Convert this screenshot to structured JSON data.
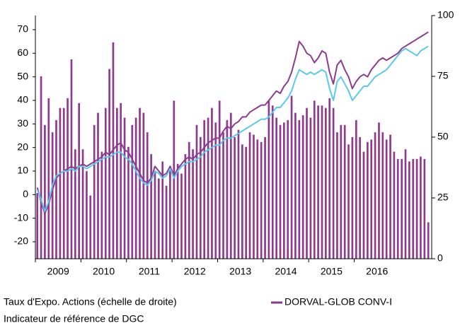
{
  "chart_data": {
    "type": "combo",
    "x": [
      2009.042,
      2009.125,
      2009.208,
      2009.292,
      2009.375,
      2009.458,
      2009.542,
      2009.625,
      2009.708,
      2009.792,
      2009.875,
      2009.958,
      2010.042,
      2010.125,
      2010.208,
      2010.292,
      2010.375,
      2010.458,
      2010.542,
      2010.625,
      2010.708,
      2010.792,
      2010.875,
      2010.958,
      2011.042,
      2011.125,
      2011.208,
      2011.292,
      2011.375,
      2011.458,
      2011.542,
      2011.625,
      2011.708,
      2011.792,
      2011.875,
      2011.958,
      2012.042,
      2012.125,
      2012.208,
      2012.292,
      2012.375,
      2012.458,
      2012.542,
      2012.625,
      2012.708,
      2012.792,
      2012.875,
      2012.958,
      2013.042,
      2013.125,
      2013.208,
      2013.292,
      2013.375,
      2013.458,
      2013.542,
      2013.625,
      2013.708,
      2013.792,
      2013.875,
      2013.958,
      2014.042,
      2014.125,
      2014.208,
      2014.292,
      2014.375,
      2014.458,
      2014.542,
      2014.625,
      2014.708,
      2014.792,
      2014.875,
      2014.958,
      2015.042,
      2015.125,
      2015.208,
      2015.292,
      2015.375,
      2015.458,
      2015.542,
      2015.625,
      2015.708,
      2015.792,
      2015.875,
      2015.958,
      2016.042,
      2016.125,
      2016.208,
      2016.292,
      2016.375,
      2016.458,
      2016.542,
      2016.625,
      2016.708,
      2016.792,
      2016.875,
      2016.958,
      2017.042,
      2017.125,
      2017.208,
      2017.292,
      2017.375,
      2017.458,
      2017.542,
      2017.625
    ],
    "series": [
      {
        "name": "Taux d'Expo. Actions (échelle de droite)",
        "type": "bar",
        "axis": "y2",
        "color": "#8e3a8e",
        "values": [
          27,
          75,
          55,
          66,
          52,
          57,
          62,
          62,
          66,
          82,
          45,
          64,
          45,
          36,
          26,
          55,
          60,
          44,
          62,
          78,
          89,
          62,
          64,
          58,
          46,
          55,
          58,
          62,
          60,
          52,
          43,
          36,
          33,
          40,
          30,
          38,
          65,
          39,
          35,
          43,
          48,
          45,
          55,
          50,
          57,
          58,
          62,
          56,
          65,
          52,
          57,
          60,
          50,
          53,
          47,
          46,
          52,
          51,
          49,
          48,
          50,
          65,
          63,
          58,
          55,
          56,
          57,
          67,
          60,
          57,
          59,
          62,
          58,
          65,
          63,
          63,
          62,
          66,
          62,
          52,
          55,
          55,
          47,
          50,
          57,
          50,
          44,
          48,
          49,
          52,
          56,
          52,
          49,
          51,
          44,
          41,
          41,
          45,
          40,
          41,
          41,
          42,
          41,
          15
        ]
      },
      {
        "name": "DORVAL-GLOB CONV-I",
        "type": "line",
        "color": "#8e3a8e",
        "values": [
          3,
          -3,
          -8,
          -4,
          2,
          7,
          9,
          10,
          11,
          12,
          11,
          12,
          13,
          12,
          13,
          14,
          15,
          16,
          18,
          17,
          19,
          21,
          22,
          19,
          18,
          15,
          12,
          9,
          6,
          5,
          7,
          12,
          10,
          8,
          9,
          12,
          8,
          11,
          13,
          15,
          16,
          15,
          17,
          18,
          20,
          22,
          23,
          24,
          24,
          27,
          29,
          28,
          30,
          31,
          33,
          33,
          35,
          36,
          37,
          38,
          38,
          40,
          42,
          44,
          43,
          46,
          48,
          52,
          58,
          65,
          63,
          60,
          59,
          56,
          58,
          61,
          60,
          52,
          47,
          55,
          57,
          53,
          50,
          45,
          48,
          50,
          51,
          50,
          53,
          55,
          57,
          58,
          57,
          58,
          59,
          60,
          62,
          63,
          64,
          65,
          66,
          67,
          68,
          69
        ]
      },
      {
        "name": "Indicateur de référence de DGC",
        "type": "line",
        "color": "#5bc8ec",
        "values": [
          2,
          -2,
          -7,
          -3,
          4,
          8,
          9,
          10,
          10,
          11,
          10,
          12,
          12,
          11,
          12,
          13,
          14,
          15,
          16,
          16,
          17,
          18,
          18,
          16,
          15,
          13,
          10,
          7,
          5,
          4,
          6,
          10,
          9,
          7,
          8,
          11,
          7,
          10,
          12,
          13,
          14,
          14,
          15,
          16,
          18,
          19,
          20,
          21,
          21,
          23,
          24,
          24,
          25,
          26,
          27,
          28,
          29,
          30,
          31,
          32,
          32,
          33,
          35,
          37,
          37,
          39,
          41,
          44,
          49,
          53,
          52,
          51,
          52,
          51,
          52,
          53,
          52,
          45,
          40,
          48,
          50,
          47,
          44,
          40,
          42,
          44,
          46,
          46,
          48,
          50,
          51,
          52,
          53,
          55,
          57,
          59,
          61,
          62,
          61,
          60,
          59,
          61,
          62,
          63
        ]
      }
    ],
    "xlim": [
      2009,
      2017.7
    ],
    "xticks": [
      2009,
      2010,
      2011,
      2012,
      2013,
      2014,
      2015,
      2016
    ],
    "ylim": [
      -27.2,
      76
    ],
    "yticks": [
      -20,
      -10,
      0,
      10,
      20,
      30,
      40,
      50,
      60,
      70
    ],
    "y2lim": [
      0,
      100
    ],
    "y2ticks": [
      0,
      25,
      50,
      75,
      100
    ]
  }
}
